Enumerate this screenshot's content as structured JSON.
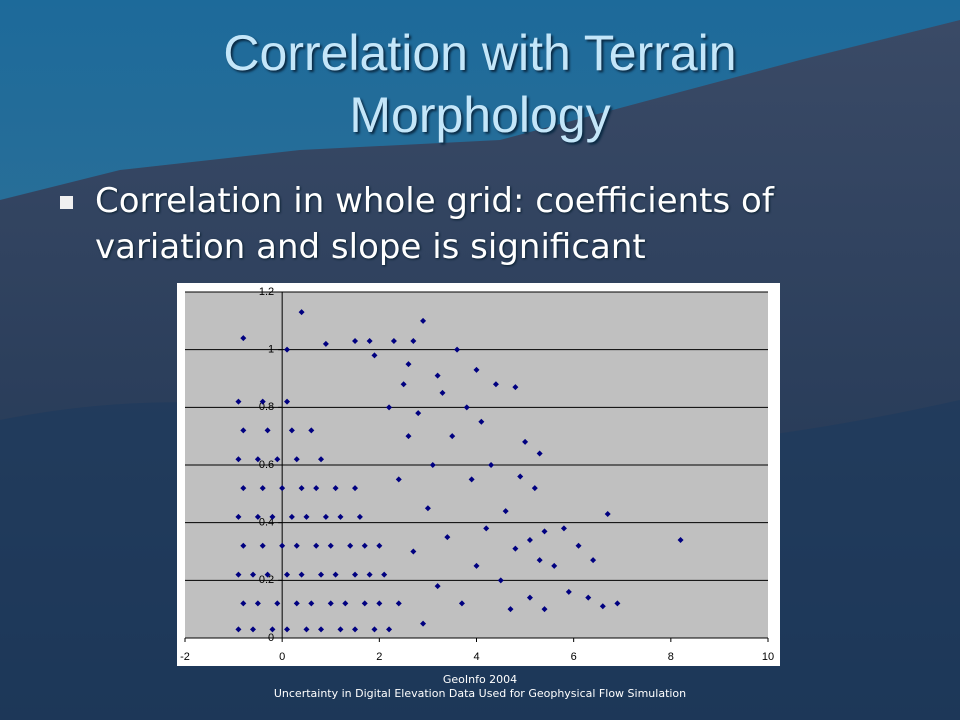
{
  "slide": {
    "title": "Correlation with Terrain Morphology",
    "bullet": "Correlation in whole grid: coefficients of variation and slope is significant",
    "footer": [
      "GeoInfo 2004",
      "Uncertainty in Digital Elevation Data Used for Geophysical Flow Simulation"
    ]
  },
  "chart_data": {
    "type": "scatter",
    "color": "#000080",
    "grid": true,
    "xlim": [
      -2,
      10
    ],
    "xticks": [
      -2,
      0,
      2,
      4,
      6,
      8,
      10
    ],
    "ylim": [
      0,
      1.2
    ],
    "yticks": [
      0,
      0.2,
      0.4,
      0.6,
      0.8,
      1,
      1.2
    ],
    "x": [
      0.4,
      -0.8,
      2.9,
      0.1,
      0.9,
      1.5,
      1.8,
      2.3,
      2.7,
      3.6,
      4.0,
      4.8,
      4.4,
      3.2,
      2.6,
      1.9,
      8.2,
      6.7,
      6.1,
      6.4,
      6.9,
      6.6,
      6.3,
      5.9,
      5.6,
      5.3,
      5.1,
      5.4,
      5.8,
      5.2,
      5.3,
      5.0,
      4.6,
      4.8,
      4.5,
      4.7,
      5.1,
      5.4,
      4.9,
      4.3,
      4.1,
      3.8,
      3.5,
      3.9,
      4.2,
      4.0,
      3.7,
      3.4,
      3.1,
      3.3,
      2.8,
      2.5,
      2.2,
      3.0,
      2.7,
      3.2,
      2.9,
      2.4,
      2.6,
      -0.9,
      -0.6,
      -0.2,
      0.1,
      0.5,
      0.8,
      1.2,
      1.5,
      1.9,
      2.2,
      -0.8,
      -0.5,
      -0.1,
      0.3,
      0.6,
      1.0,
      1.3,
      1.7,
      2.0,
      2.4,
      -0.9,
      -0.6,
      -0.3,
      0.1,
      0.4,
      0.8,
      1.1,
      1.5,
      1.8,
      2.1,
      -0.8,
      -0.4,
      0.0,
      0.3,
      0.7,
      1.0,
      1.4,
      1.7,
      2.0,
      -0.9,
      -0.5,
      -0.2,
      0.2,
      0.5,
      0.9,
      1.2,
      1.6,
      -0.8,
      -0.4,
      0.0,
      0.4,
      0.7,
      1.1,
      1.5,
      -0.9,
      -0.5,
      -0.1,
      0.3,
      0.8,
      -0.8,
      -0.3,
      0.2,
      0.6,
      -0.9,
      -0.4,
      0.1
    ],
    "y": [
      1.13,
      1.04,
      1.1,
      1.0,
      1.02,
      1.03,
      1.03,
      1.03,
      1.03,
      1.0,
      0.93,
      0.87,
      0.88,
      0.91,
      0.95,
      0.98,
      0.34,
      0.43,
      0.32,
      0.27,
      0.12,
      0.11,
      0.14,
      0.16,
      0.25,
      0.27,
      0.34,
      0.37,
      0.38,
      0.52,
      0.64,
      0.68,
      0.44,
      0.31,
      0.2,
      0.1,
      0.14,
      0.1,
      0.56,
      0.6,
      0.75,
      0.8,
      0.7,
      0.55,
      0.38,
      0.25,
      0.12,
      0.35,
      0.6,
      0.85,
      0.78,
      0.88,
      0.8,
      0.45,
      0.3,
      0.18,
      0.05,
      0.55,
      0.7,
      0.03,
      0.03,
      0.03,
      0.03,
      0.03,
      0.03,
      0.03,
      0.03,
      0.03,
      0.03,
      0.12,
      0.12,
      0.12,
      0.12,
      0.12,
      0.12,
      0.12,
      0.12,
      0.12,
      0.12,
      0.22,
      0.22,
      0.22,
      0.22,
      0.22,
      0.22,
      0.22,
      0.22,
      0.22,
      0.22,
      0.32,
      0.32,
      0.32,
      0.32,
      0.32,
      0.32,
      0.32,
      0.32,
      0.32,
      0.42,
      0.42,
      0.42,
      0.42,
      0.42,
      0.42,
      0.42,
      0.42,
      0.52,
      0.52,
      0.52,
      0.52,
      0.52,
      0.52,
      0.52,
      0.62,
      0.62,
      0.62,
      0.62,
      0.62,
      0.72,
      0.72,
      0.72,
      0.72,
      0.82,
      0.82,
      0.82
    ]
  }
}
